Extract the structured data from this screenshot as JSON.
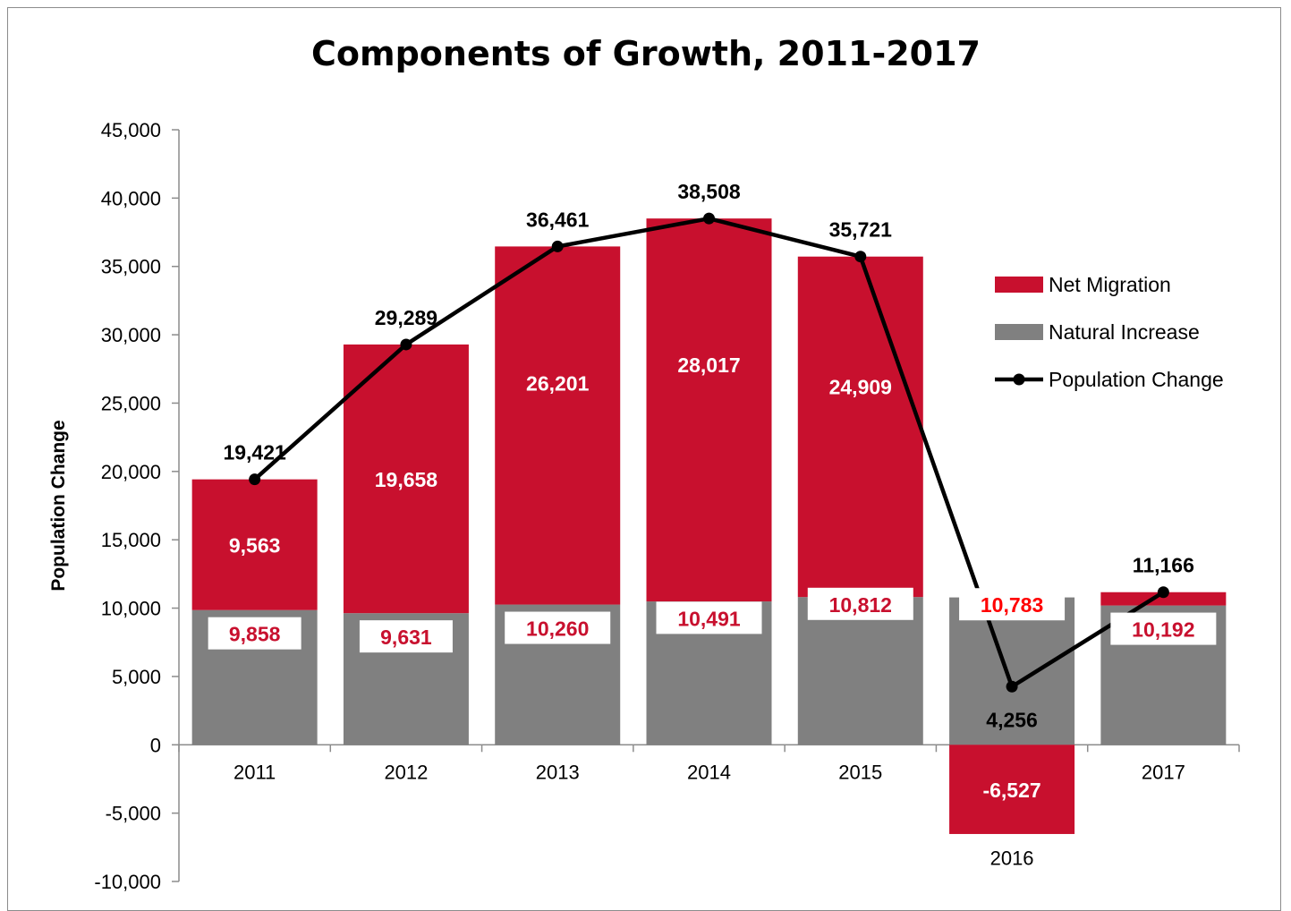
{
  "chart_data": {
    "type": "bar",
    "stacked": true,
    "title": "Components of Growth, 2011-2017",
    "xlabel": "",
    "ylabel": "Population Change",
    "ylim": [
      -10000,
      45000
    ],
    "yticks": [
      -10000,
      -5000,
      0,
      5000,
      10000,
      15000,
      20000,
      25000,
      30000,
      35000,
      40000,
      45000
    ],
    "ytick_labels": [
      "-10,000",
      "-5,000",
      "0",
      "5,000",
      "10,000",
      "15,000",
      "20,000",
      "25,000",
      "30,000",
      "35,000",
      "40,000",
      "45,000"
    ],
    "categories": [
      "2011",
      "2012",
      "2013",
      "2014",
      "2015",
      "2016",
      "2017"
    ],
    "grid": false,
    "legend_position": "right",
    "series": [
      {
        "name": "Natural Increase",
        "kind": "bar",
        "color": "#808080",
        "values": [
          9858,
          9631,
          10260,
          10491,
          10812,
          10783,
          10192
        ],
        "labels": [
          "9,858",
          "9,631",
          "10,260",
          "10,491",
          "10,812",
          "10,783",
          "10,192"
        ],
        "label_color": "#c8102e",
        "label_color_highlight": "#ff0000"
      },
      {
        "name": "Net Migration",
        "kind": "bar",
        "color": "#c8102e",
        "values": [
          9563,
          19658,
          26201,
          28017,
          24909,
          -6527,
          974
        ],
        "labels": [
          "9,563",
          "19,658",
          "26,201",
          "28,017",
          "24,909",
          "-6,527",
          ""
        ],
        "label_color": "#ffffff"
      },
      {
        "name": "Population Change",
        "kind": "line",
        "color": "#000000",
        "values": [
          19421,
          29289,
          36461,
          38508,
          35721,
          4256,
          11166
        ],
        "labels": [
          "19,421",
          "29,289",
          "36,461",
          "38,508",
          "35,721",
          "4,256",
          "11,166"
        ]
      }
    ],
    "legend": [
      "Net Migration",
      "Natural Increase",
      "Population Change"
    ]
  }
}
